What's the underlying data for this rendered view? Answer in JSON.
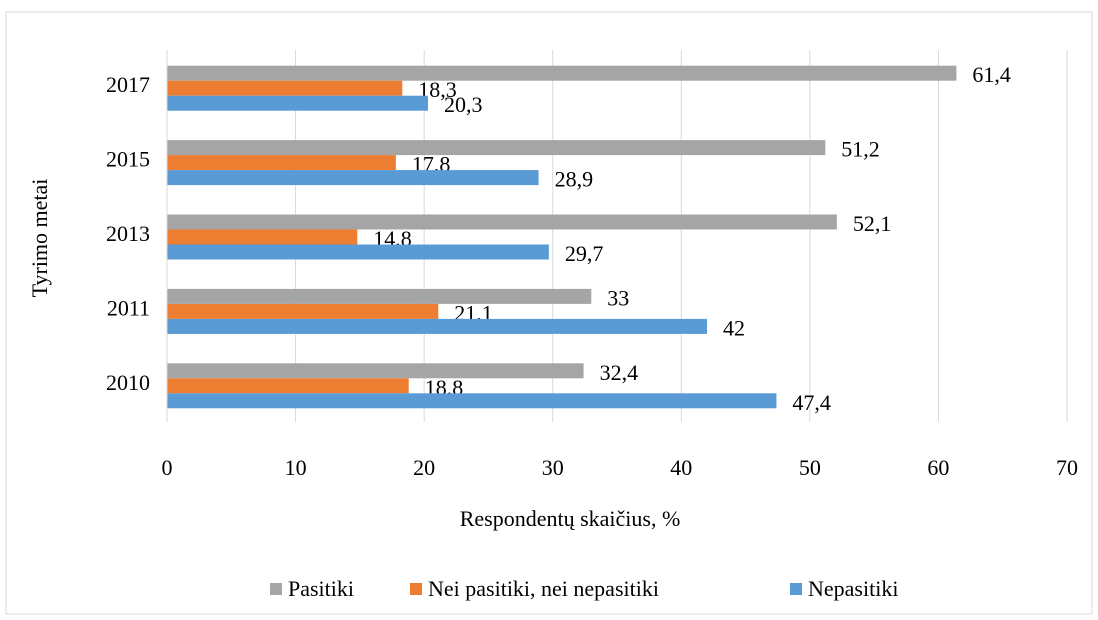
{
  "chart_data": {
    "type": "hbar",
    "categories": [
      "2010",
      "2011",
      "2013",
      "2015",
      "2017"
    ],
    "series": [
      {
        "name": "Pasitiki",
        "color": "#a5a5a5",
        "values": [
          32.4,
          33,
          52.1,
          51.2,
          61.4
        ],
        "value_labels": [
          "32,4",
          "33",
          "52,1",
          "51,2",
          "61,4"
        ]
      },
      {
        "name": "Nei pasitiki, nei nepasitiki",
        "color": "#ed7d31",
        "values": [
          18.8,
          21.1,
          14.8,
          17.8,
          18.3
        ],
        "value_labels": [
          "18,8",
          "21,1",
          "14,8",
          "17,8",
          "18,3"
        ]
      },
      {
        "name": "Nepasitiki",
        "color": "#5b9bd5",
        "values": [
          47.4,
          42,
          29.7,
          28.9,
          20.3
        ],
        "value_labels": [
          "47,4",
          "42",
          "29,7",
          "28,9",
          "20,3"
        ]
      }
    ],
    "xlim": [
      0,
      70
    ],
    "xticks": [
      0,
      10,
      20,
      30,
      40,
      50,
      60,
      70
    ],
    "xlabel": "Respondentų skaičius, %",
    "ylabel": "Tyrimo metai",
    "grid": true,
    "legend": "bottom"
  }
}
